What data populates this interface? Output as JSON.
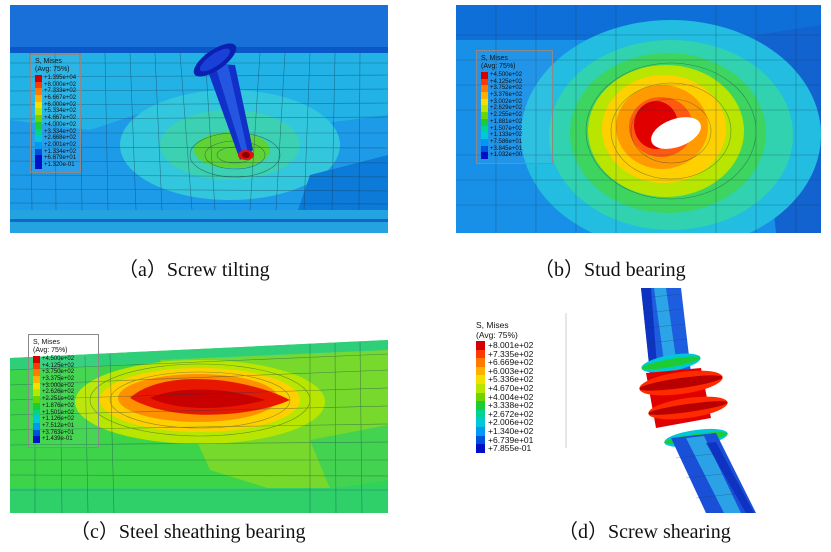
{
  "legend_colors": [
    "#d40000",
    "#ff3a00",
    "#ff7a00",
    "#ffb000",
    "#f2e000",
    "#b8e600",
    "#6ed400",
    "#1dcc35",
    "#00d38e",
    "#00c8d8",
    "#0098f0",
    "#0050e0",
    "#0010c8"
  ],
  "panels": {
    "a": {
      "caption": "（a）Screw tilting",
      "legend": {
        "title": "S, Mises",
        "subtitle": "(Avg: 75%)",
        "values": [
          "+1.395e+04",
          "+8.000e+02",
          "+7.333e+02",
          "+6.667e+02",
          "+6.000e+02",
          "+5.334e+02",
          "+4.667e+02",
          "+4.000e+02",
          "+3.334e+02",
          "+2.668e+02",
          "+2.001e+02",
          "+1.334e+02",
          "+6.679e+01",
          "+1.320e-01"
        ]
      }
    },
    "b": {
      "caption": "（b）Stud bearing",
      "legend": {
        "title": "S, Mises",
        "subtitle": "(Avg: 75%)",
        "values": [
          "+4.500e+02",
          "+4.125e+02",
          "+3.752e+02",
          "+3.376e+02",
          "+3.002e+02",
          "+2.629e+02",
          "+2.255e+02",
          "+1.881e+02",
          "+1.507e+02",
          "+1.133e+02",
          "+7.586e+01",
          "+3.845e+01",
          "+1.032e+00"
        ]
      }
    },
    "c": {
      "caption": "（c）Steel sheathing bearing",
      "legend": {
        "title": "S, Mises",
        "subtitle": "(Avg: 75%)",
        "values": [
          "+4.500e+02",
          "+4.125e+02",
          "+3.750e+02",
          "+3.375e+02",
          "+3.000e+02",
          "+2.626e+02",
          "+2.251e+02",
          "+1.876e+02",
          "+1.501e+02",
          "+1.126e+02",
          "+7.512e+01",
          "+3.763e+01",
          "+1.439e-01"
        ]
      }
    },
    "d": {
      "caption": "（d）Screw shearing",
      "legend": {
        "title": "S, Mises",
        "subtitle": "(Avg: 75%)",
        "values": [
          "+8.001e+02",
          "+7.335e+02",
          "+6.669e+02",
          "+6.003e+02",
          "+5.336e+02",
          "+4.670e+02",
          "+4.004e+02",
          "+3.338e+02",
          "+2.672e+02",
          "+2.006e+02",
          "+1.340e+02",
          "+6.739e+01",
          "+7.855e-01"
        ]
      }
    }
  }
}
